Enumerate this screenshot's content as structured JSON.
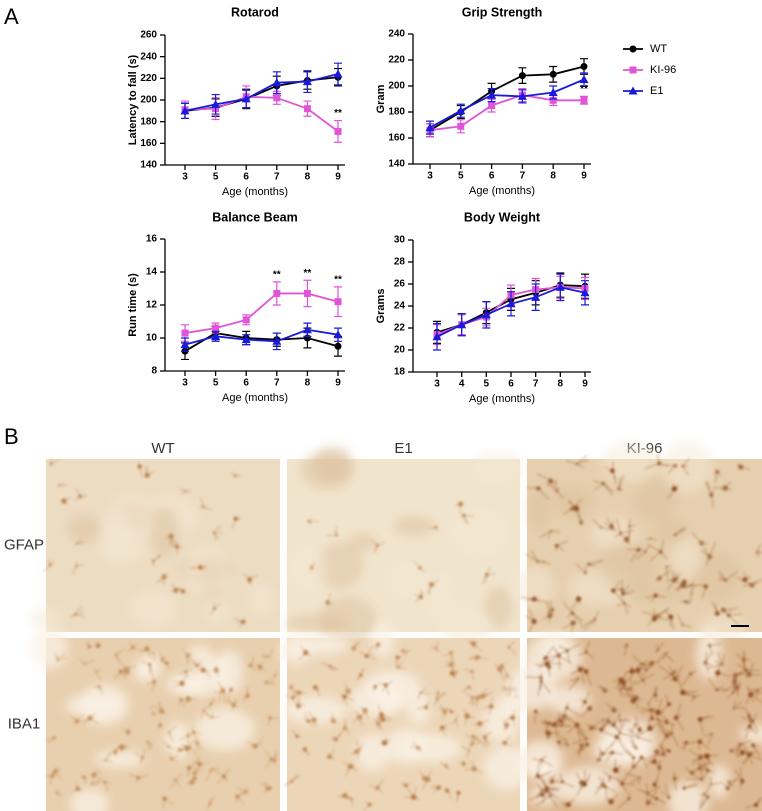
{
  "panel_labels": [
    "A",
    "B"
  ],
  "chart_data": [
    {
      "type": "line",
      "title": "Rotarod",
      "x_label": "Age (months)",
      "y_label": "Latency to fall (s)",
      "categories": [
        "3",
        "5",
        "6",
        "7",
        "8",
        "9"
      ],
      "ylim": [
        140,
        260
      ],
      "yticks": [
        140,
        160,
        180,
        200,
        220,
        240,
        260
      ],
      "series": [
        {
          "color": "#000000",
          "marker": "circle",
          "values": [
            190,
            193,
            201,
            213,
            218,
            221
          ],
          "errors": [
            7,
            8,
            9,
            9,
            8,
            8
          ]
        },
        {
          "color": "#e055d8",
          "marker": "square",
          "values": [
            191,
            192,
            203,
            202,
            192,
            171
          ],
          "errors": [
            8,
            10,
            10,
            6,
            7,
            10
          ]
        },
        {
          "color": "#1a1adb",
          "marker": "triangle",
          "values": [
            190,
            196,
            201,
            216,
            217,
            224
          ],
          "errors": [
            7,
            9,
            8,
            10,
            10,
            10
          ]
        }
      ],
      "annotations": [
        {
          "text": "**",
          "series": 1,
          "index": 5
        }
      ]
    },
    {
      "type": "line",
      "title": "Grip Strength",
      "x_label": "Age (months)",
      "y_label": "Gram",
      "categories": [
        "3",
        "5",
        "6",
        "7",
        "8",
        "9"
      ],
      "ylim": [
        140,
        240
      ],
      "yticks": [
        140,
        160,
        180,
        200,
        220,
        240
      ],
      "legend": "right",
      "series": [
        {
          "name": "WT",
          "color": "#000000",
          "marker": "circle",
          "values": [
            166,
            180,
            196,
            208,
            209,
            215
          ],
          "errors": [
            5,
            5,
            6,
            6,
            6,
            6
          ]
        },
        {
          "name": "KI-96",
          "color": "#e055d8",
          "marker": "square",
          "values": [
            166,
            169,
            185,
            193,
            189,
            189
          ],
          "errors": [
            5,
            5,
            5,
            5,
            4,
            3
          ]
        },
        {
          "name": "E1",
          "color": "#1a1adb",
          "marker": "triangle",
          "values": [
            168,
            181,
            193,
            192,
            195,
            205
          ],
          "errors": [
            5,
            5,
            5,
            5,
            5,
            5
          ]
        }
      ],
      "annotations": [
        {
          "text": "**",
          "series": 1,
          "index": 5
        }
      ]
    },
    {
      "type": "line",
      "title": "Balance Beam",
      "x_label": "Age (months)",
      "y_label": "Run time (s)",
      "categories": [
        "3",
        "5",
        "6",
        "7",
        "8",
        "9"
      ],
      "ylim": [
        8,
        16
      ],
      "yticks": [
        8,
        10,
        12,
        14,
        16
      ],
      "series": [
        {
          "color": "#000000",
          "marker": "circle",
          "values": [
            9.2,
            10.3,
            10.0,
            9.9,
            10.0,
            9.5
          ],
          "errors": [
            0.5,
            0.4,
            0.4,
            0.4,
            0.6,
            0.6
          ]
        },
        {
          "color": "#e055d8",
          "marker": "square",
          "values": [
            10.3,
            10.6,
            11.1,
            12.7,
            12.7,
            12.2
          ],
          "errors": [
            0.5,
            0.3,
            0.3,
            0.7,
            0.8,
            0.9
          ]
        },
        {
          "color": "#1a1adb",
          "marker": "triangle",
          "values": [
            9.6,
            10.1,
            9.9,
            9.8,
            10.5,
            10.2
          ],
          "errors": [
            0.4,
            0.3,
            0.3,
            0.5,
            0.4,
            0.4
          ]
        }
      ],
      "annotations": [
        {
          "text": "**",
          "series": 1,
          "index": 3
        },
        {
          "text": "**",
          "series": 1,
          "index": 4
        },
        {
          "text": "**",
          "series": 1,
          "index": 5
        }
      ]
    },
    {
      "type": "line",
      "title": "Body Weight",
      "x_label": "Age (months)",
      "y_label": "Grams",
      "categories": [
        "3",
        "4",
        "5",
        "6",
        "7",
        "8",
        "9"
      ],
      "ylim": [
        18,
        30
      ],
      "yticks": [
        18,
        20,
        22,
        24,
        26,
        28,
        30
      ],
      "series": [
        {
          "color": "#000000",
          "marker": "circle",
          "values": [
            21.6,
            22.3,
            23.4,
            24.6,
            25.2,
            25.9,
            25.8
          ],
          "errors": [
            1.0,
            1.0,
            1.0,
            1.0,
            1.1,
            1.1,
            1.1
          ]
        },
        {
          "color": "#e055d8",
          "marker": "square",
          "values": [
            21.4,
            22.3,
            23.0,
            25.0,
            25.5,
            25.7,
            25.6
          ],
          "errors": [
            0.9,
            0.9,
            0.8,
            0.9,
            1.0,
            1.0,
            1.0
          ]
        },
        {
          "color": "#1a1adb",
          "marker": "triangle",
          "values": [
            21.2,
            22.3,
            23.2,
            24.2,
            24.8,
            25.7,
            25.2
          ],
          "errors": [
            1.2,
            1.0,
            1.2,
            1.1,
            1.2,
            1.2,
            1.1
          ]
        }
      ]
    }
  ],
  "image_grid": {
    "columns": [
      "WT",
      "E1",
      "KI-96"
    ],
    "rows": [
      "GFAP",
      "IBA1"
    ]
  }
}
